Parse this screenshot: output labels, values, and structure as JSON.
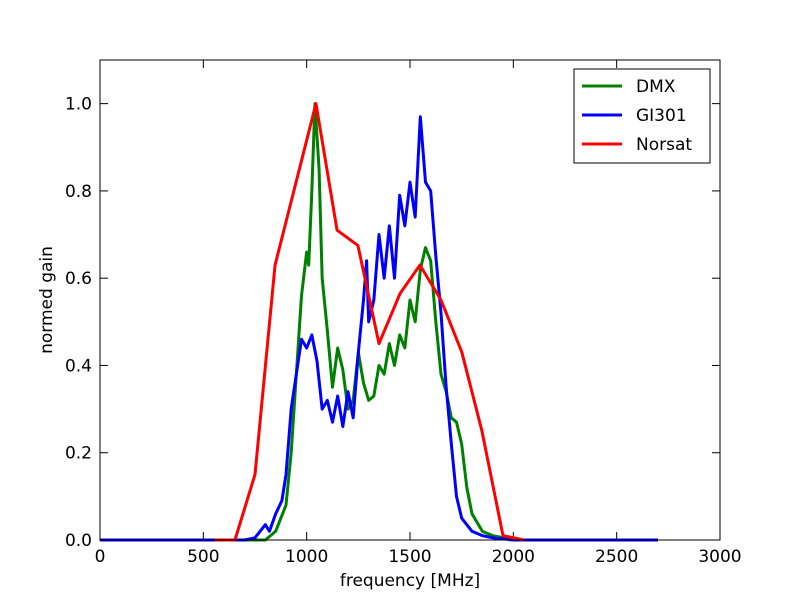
{
  "chart_data": {
    "type": "line",
    "xlabel": "frequency [MHz]",
    "ylabel": "normed gain",
    "xlim": [
      0,
      3000
    ],
    "ylim": [
      0,
      1.1
    ],
    "xticks": [
      0,
      500,
      1000,
      1500,
      2000,
      2500,
      3000
    ],
    "yticks": [
      {
        "value": 0,
        "label": "0.0"
      },
      {
        "value": 0.2,
        "label": "0.2"
      },
      {
        "value": 0.4,
        "label": "0.4"
      },
      {
        "value": 0.6,
        "label": "0.6"
      },
      {
        "value": 0.8,
        "label": "0.8"
      },
      {
        "value": 1.0,
        "label": "1.0"
      }
    ],
    "legend": "upper right",
    "series": [
      {
        "name": "DMX",
        "color": "#008000",
        "x": [
          0,
          800,
          850,
          900,
          925,
          950,
          975,
          1000,
          1010,
          1025,
          1040,
          1060,
          1075,
          1100,
          1125,
          1150,
          1175,
          1200,
          1225,
          1250,
          1275,
          1300,
          1325,
          1350,
          1375,
          1400,
          1425,
          1450,
          1475,
          1500,
          1525,
          1550,
          1575,
          1600,
          1625,
          1650,
          1675,
          1700,
          1725,
          1750,
          1775,
          1800,
          1850,
          1900,
          2000,
          2700
        ],
        "values": [
          0,
          0,
          0.02,
          0.08,
          0.2,
          0.38,
          0.56,
          0.66,
          0.63,
          0.8,
          1.0,
          0.85,
          0.6,
          0.48,
          0.35,
          0.44,
          0.39,
          0.3,
          0.32,
          0.43,
          0.36,
          0.32,
          0.33,
          0.4,
          0.38,
          0.45,
          0.4,
          0.47,
          0.44,
          0.55,
          0.5,
          0.62,
          0.67,
          0.64,
          0.5,
          0.38,
          0.34,
          0.28,
          0.27,
          0.22,
          0.12,
          0.06,
          0.02,
          0.01,
          0,
          0
        ]
      },
      {
        "name": "GI301",
        "color": "#0000ff",
        "x": [
          0,
          700,
          750,
          800,
          820,
          850,
          880,
          900,
          925,
          950,
          975,
          1000,
          1025,
          1050,
          1075,
          1100,
          1125,
          1150,
          1175,
          1200,
          1225,
          1250,
          1275,
          1290,
          1300,
          1325,
          1350,
          1375,
          1400,
          1425,
          1450,
          1475,
          1500,
          1525,
          1550,
          1575,
          1600,
          1625,
          1650,
          1675,
          1700,
          1725,
          1750,
          1800,
          1850,
          1900,
          2000,
          2700
        ],
        "values": [
          0,
          0,
          0.005,
          0.035,
          0.02,
          0.06,
          0.09,
          0.15,
          0.3,
          0.38,
          0.46,
          0.44,
          0.47,
          0.41,
          0.3,
          0.32,
          0.27,
          0.33,
          0.26,
          0.34,
          0.28,
          0.43,
          0.55,
          0.64,
          0.5,
          0.55,
          0.7,
          0.6,
          0.72,
          0.6,
          0.79,
          0.72,
          0.82,
          0.74,
          0.97,
          0.82,
          0.8,
          0.65,
          0.52,
          0.35,
          0.22,
          0.1,
          0.05,
          0.02,
          0.01,
          0.005,
          0,
          0
        ]
      },
      {
        "name": "Norsat",
        "color": "#ff0000",
        "x": [
          556,
          653,
          750,
          847,
          1045,
          1147,
          1248,
          1350,
          1452,
          1548,
          1650,
          1751,
          1848,
          1950,
          2052
        ],
        "values": [
          0,
          0,
          0.15,
          0.63,
          1.0,
          0.71,
          0.675,
          0.45,
          0.565,
          0.63,
          0.55,
          0.43,
          0.25,
          0.01,
          0
        ]
      }
    ]
  }
}
